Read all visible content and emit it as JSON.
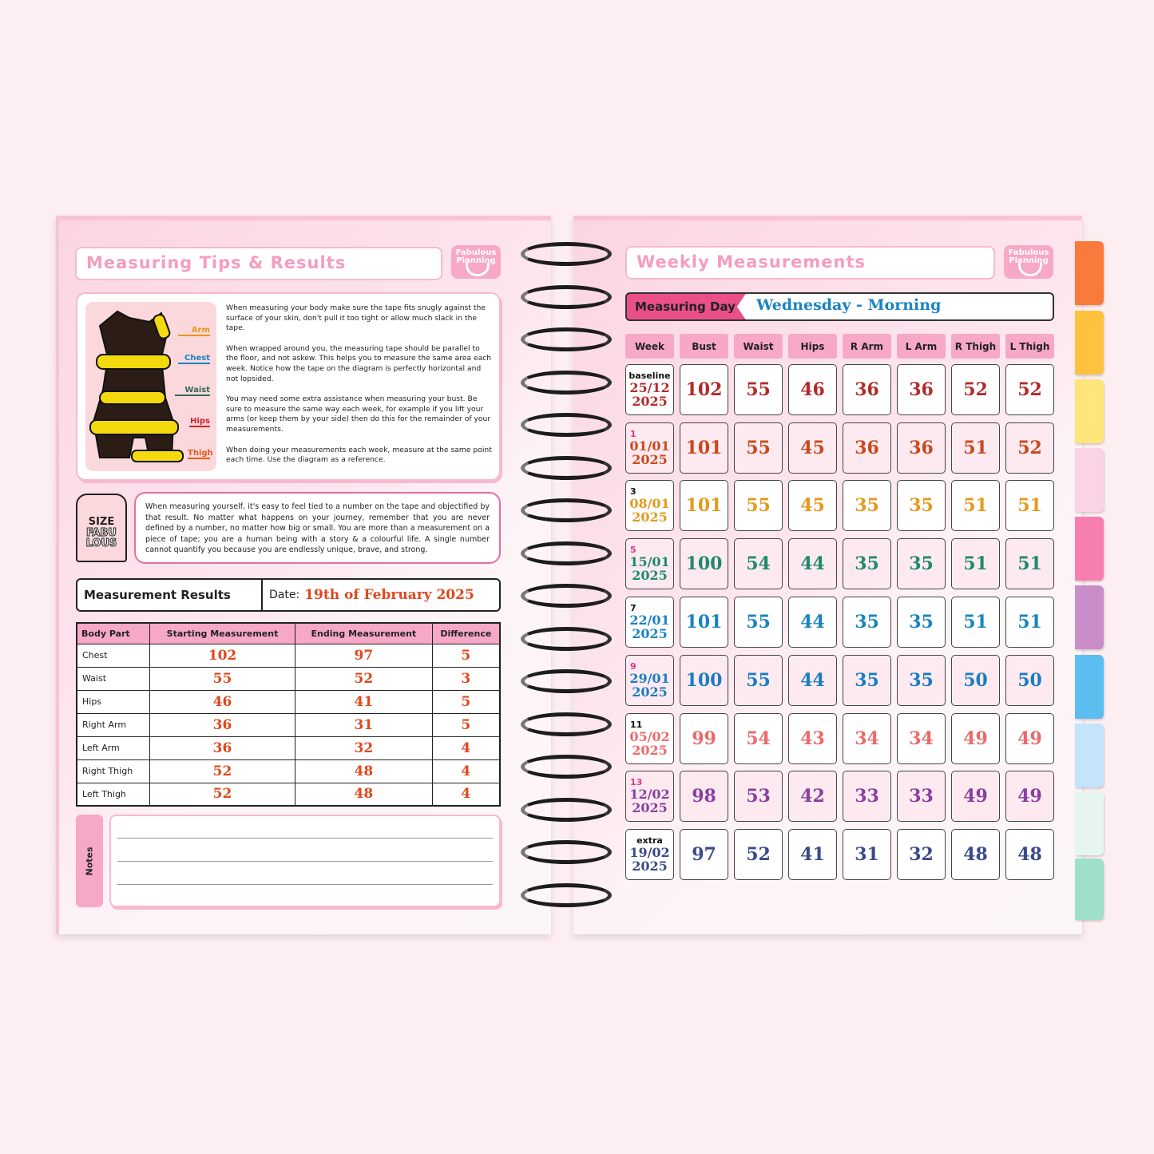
{
  "left": {
    "title": "Measuring Tips & Results",
    "logo": "Fabulous Planning",
    "figure_labels": [
      "Arm",
      "Chest",
      "Waist",
      "Hips",
      "Thigh"
    ],
    "figure_label_colors": [
      "#e6961c",
      "#1a84c0",
      "#2f6b5a",
      "#d01f2a",
      "#e65a1c"
    ],
    "tips": [
      "When measuring your body make sure the tape fits snugly against the surface of your skin, don't pull it too tight or allow much slack in the tape.",
      "When wrapped around you, the measuring tape should be parallel to the floor, and not askew. This helps you to measure the same area each week. Notice how the tape on the diagram is perfectly horizontal and not lopsided.",
      "You may need some extra assistance when measuring your bust. Be sure to measure the same way each week, for example if you lift your arms (or keep them by your side) then do this for the remainder of your measurements.",
      "When doing your measurements each week, measure at the same point each time. Use the diagram as a reference."
    ],
    "tag": {
      "line1": "SIZE",
      "line2": "FABU",
      "line3": "LOUS"
    },
    "quote": "When measuring yourself, it's easy to feel tied to a number on the tape and objectified by that result. No matter what happens on your journey, remember that you are never defined by a number, no matter how big or small. You are more than a measurement on a piece of tape; you are a human being with a story & a colourful life. A single number cannot quantify you because you are endlessly unique, brave, and strong.",
    "results": {
      "title": "Measurement Results",
      "date_label": "Date:",
      "date_value": "19th of February 2025",
      "headers": [
        "Body Part",
        "Starting Measurement",
        "Ending Measurement",
        "Difference"
      ],
      "rows": [
        [
          "Chest",
          "102",
          "97",
          "5"
        ],
        [
          "Waist",
          "55",
          "52",
          "3"
        ],
        [
          "Hips",
          "46",
          "41",
          "5"
        ],
        [
          "Right Arm",
          "36",
          "31",
          "5"
        ],
        [
          "Left Arm",
          "36",
          "32",
          "4"
        ],
        [
          "Right Thigh",
          "52",
          "48",
          "4"
        ],
        [
          "Left Thigh",
          "52",
          "48",
          "4"
        ]
      ]
    },
    "notes_label": "Notes"
  },
  "right": {
    "title": "Weekly Measurements",
    "logo": "Fabulous Planning",
    "measuring_day_label": "Measuring Day",
    "measuring_day_value": "Wednesday - Morning",
    "headers": [
      "Week",
      "Bust",
      "Waist",
      "Hips",
      "R Arm",
      "L Arm",
      "R Thigh",
      "L Thigh"
    ],
    "rows": [
      {
        "week": "baseline",
        "date": "25/12",
        "year": "2025",
        "color": "#b42a2a",
        "values": [
          "102",
          "55",
          "46",
          "36",
          "36",
          "52",
          "52"
        ]
      },
      {
        "week": "1",
        "date": "01/01",
        "year": "2025",
        "color": "#c9481a",
        "values": [
          "101",
          "55",
          "45",
          "36",
          "36",
          "51",
          "52"
        ]
      },
      {
        "week": "3",
        "date": "08/01",
        "year": "2025",
        "color": "#e39a1c",
        "values": [
          "101",
          "55",
          "45",
          "35",
          "35",
          "51",
          "51"
        ]
      },
      {
        "week": "5",
        "date": "15/01",
        "year": "2025",
        "color": "#1f8a6a",
        "values": [
          "100",
          "54",
          "44",
          "35",
          "35",
          "51",
          "51"
        ]
      },
      {
        "week": "7",
        "date": "22/01",
        "year": "2025",
        "color": "#1a84c0",
        "values": [
          "101",
          "55",
          "44",
          "35",
          "35",
          "51",
          "51"
        ]
      },
      {
        "week": "9",
        "date": "29/01",
        "year": "2025",
        "color": "#1a7dc0",
        "values": [
          "100",
          "55",
          "44",
          "35",
          "35",
          "50",
          "50"
        ]
      },
      {
        "week": "11",
        "date": "05/02",
        "year": "2025",
        "color": "#ea6a6a",
        "values": [
          "99",
          "54",
          "43",
          "34",
          "34",
          "49",
          "49"
        ]
      },
      {
        "week": "13",
        "date": "12/02",
        "year": "2025",
        "color": "#8a3fa0",
        "values": [
          "98",
          "53",
          "42",
          "33",
          "33",
          "49",
          "49"
        ]
      },
      {
        "week": "extra",
        "date": "19/02",
        "year": "2025",
        "color": "#3a4a8a",
        "values": [
          "97",
          "52",
          "41",
          "31",
          "32",
          "48",
          "48"
        ]
      }
    ]
  },
  "colors": {
    "accent_pink": "#f7a8c6",
    "measuring_day_pink": "#ea4f8a",
    "result_value": "#e0471a",
    "tabs": [
      "#f97a3a",
      "#ffc23e",
      "#ffe57a",
      "#fbd3e6",
      "#f77fb0",
      "#c98dc9",
      "#5bbdf0",
      "#c4e4fb",
      "#e4f6ef",
      "#9fe0cb"
    ]
  }
}
